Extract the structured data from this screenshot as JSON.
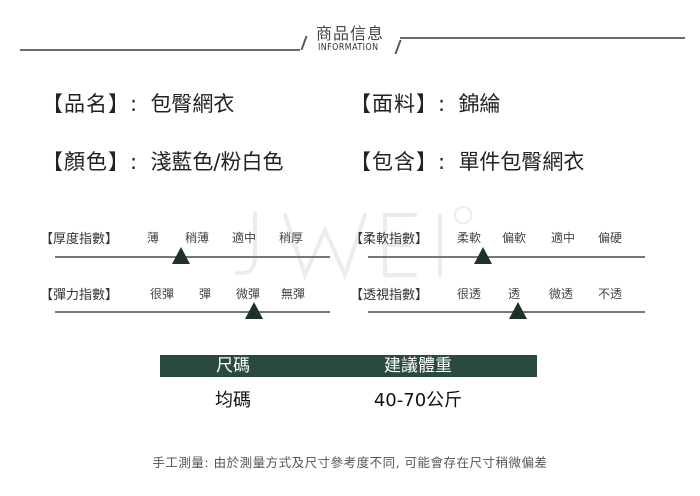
{
  "header": {
    "title_cn": "商品信息",
    "title_en": "INFORMATION"
  },
  "watermark": "JWEI®",
  "attributes": [
    {
      "key": "【品名】",
      "sep": ":",
      "value": "包臀網衣"
    },
    {
      "key": "【面料】",
      "sep": ":",
      "value": "錦綸"
    },
    {
      "key": "【顏色】",
      "sep": ":",
      "value": "淺藍色/粉白色"
    },
    {
      "key": "【包含】",
      "sep": ":",
      "value": "單件包臀網衣"
    }
  ],
  "scales": [
    {
      "label": "【厚度指數】",
      "options": [
        "薄",
        "稍薄",
        "適中",
        "稍厚"
      ],
      "marker_level": 0.2
    },
    {
      "label": "【柔軟指數】",
      "options": [
        "柔軟",
        "偏軟",
        "適中",
        "偏硬"
      ],
      "marker_level": 0.1
    },
    {
      "label": "【彈力指數】",
      "options": [
        "很彈",
        "彈",
        "微彈",
        "無彈"
      ],
      "marker_level": 0.7
    },
    {
      "label": "【透視指數】",
      "options": [
        "很透",
        "透",
        "微透",
        "不透"
      ],
      "marker_level": 0.35
    }
  ],
  "size_table": {
    "headers": [
      "尺碼",
      "建議體重"
    ],
    "rows": [
      [
        "均碼",
        "40-70公斤"
      ]
    ],
    "header_color": "#2b4a3e"
  },
  "footer_note": "手工測量: 由於測量方式及尺寸參考度不同, 可能會存在尺寸稍微偏差"
}
